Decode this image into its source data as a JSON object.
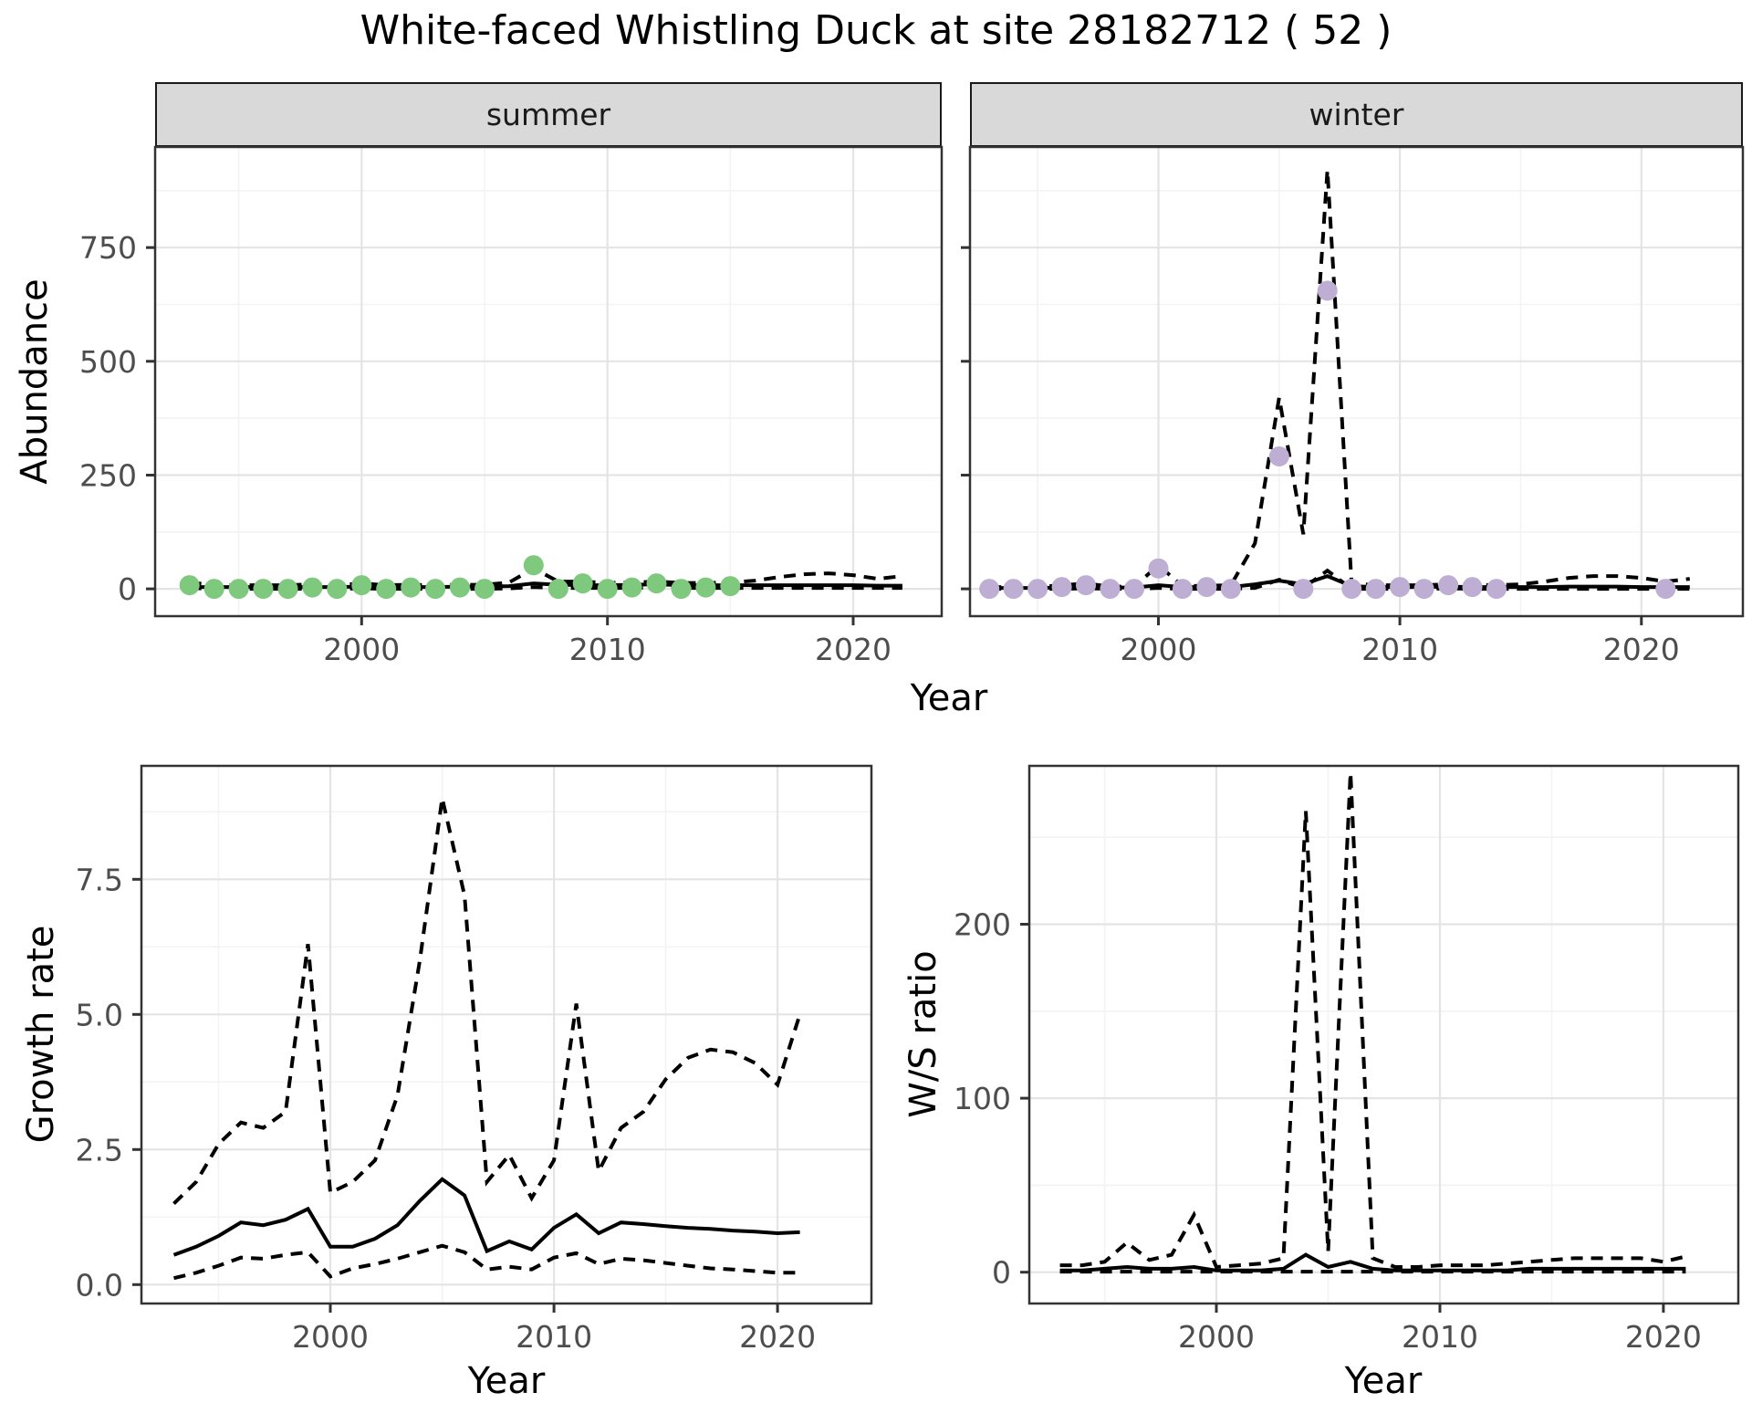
{
  "figure_title": "White-faced Whistling Duck at site 28182712 ( 52 )",
  "facets": [
    {
      "label": "summer"
    },
    {
      "label": "winter"
    }
  ],
  "axis_titles": {
    "x": "Year",
    "abundance": "Abundance",
    "growth": "Growth rate",
    "ws": "W/S ratio"
  },
  "colors": {
    "summer_point": "#7FC97F",
    "winter_point": "#BEAED4",
    "line": "#000000",
    "strip_bg": "#d9d9d9",
    "panel_border": "#333333",
    "grid_major": "#e4e4e4",
    "grid_minor": "#f3f3f3",
    "tick_text": "#4d4d4d",
    "tick_mark": "#333333"
  },
  "chart_data": [
    {
      "id": "abundance-summer",
      "type": "line",
      "facet": "summer",
      "xlabel": "Year",
      "ylabel": "Abundance",
      "xlim": [
        1991.6,
        2023.6
      ],
      "ylim": [
        -60,
        971
      ],
      "x_ticks": {
        "values": [
          2000,
          2010,
          2020
        ],
        "labels": [
          "2000",
          "2010",
          "2020"
        ]
      },
      "x_minor": [
        1995,
        2005,
        2015
      ],
      "y_ticks": {
        "values": [
          0,
          250,
          500,
          750
        ],
        "labels": [
          "0",
          "250",
          "500",
          "750"
        ]
      },
      "y_minor": [
        125,
        375,
        625,
        875
      ],
      "show_y_labels": true,
      "series": [
        {
          "name": "upper_ci",
          "style": "dashed",
          "x": [
            1993,
            1994,
            1995,
            1996,
            1997,
            1998,
            1999,
            2000,
            2001,
            2002,
            2003,
            2004,
            2005,
            2006,
            2007,
            2008,
            2009,
            2010,
            2011,
            2012,
            2013,
            2014,
            2015,
            2016,
            2017,
            2018,
            2019,
            2020,
            2021,
            2022
          ],
          "y": [
            14,
            8,
            8,
            8,
            8,
            10,
            8,
            12,
            8,
            9,
            8,
            9,
            9,
            14,
            45,
            16,
            16,
            13,
            14,
            16,
            13,
            13,
            14,
            18,
            26,
            32,
            34,
            30,
            22,
            28
          ]
        },
        {
          "name": "fit",
          "style": "solid",
          "x": [
            1993,
            1994,
            1995,
            1996,
            1997,
            1998,
            1999,
            2000,
            2001,
            2002,
            2003,
            2004,
            2005,
            2006,
            2007,
            2008,
            2009,
            2010,
            2011,
            2012,
            2013,
            2014,
            2015,
            2016,
            2017,
            2018,
            2019,
            2020,
            2021,
            2022
          ],
          "y": [
            4,
            4,
            4,
            4,
            4,
            4,
            4,
            5,
            4,
            4,
            4,
            5,
            5,
            6,
            12,
            9,
            8,
            8,
            9,
            10,
            8,
            8,
            8,
            8,
            8,
            8,
            8,
            8,
            7,
            7
          ]
        },
        {
          "name": "lower_ci",
          "style": "dashed",
          "x": [
            1993,
            1994,
            1995,
            1996,
            1997,
            1998,
            1999,
            2000,
            2001,
            2002,
            2003,
            2004,
            2005,
            2006,
            2007,
            2008,
            2009,
            2010,
            2011,
            2012,
            2013,
            2014,
            2015,
            2016,
            2017,
            2018,
            2019,
            2020,
            2021,
            2022
          ],
          "y": [
            2,
            0,
            0,
            0,
            0,
            0,
            0,
            1,
            0,
            0,
            0,
            0,
            0,
            1,
            4,
            2,
            2,
            2,
            2,
            3,
            2,
            2,
            2,
            2,
            2,
            2,
            2,
            2,
            2,
            2
          ]
        }
      ],
      "points": {
        "color": "#7FC97F",
        "x": [
          1993,
          1994,
          1995,
          1996,
          1997,
          1998,
          1999,
          2000,
          2001,
          2002,
          2003,
          2004,
          2005,
          2007,
          2008,
          2009,
          2010,
          2011,
          2012,
          2013,
          2014,
          2015
        ],
        "y": [
          8,
          0,
          0,
          0,
          0,
          3,
          0,
          8,
          0,
          3,
          0,
          3,
          0,
          52,
          0,
          12,
          0,
          3,
          12,
          0,
          3,
          6
        ]
      }
    },
    {
      "id": "abundance-winter",
      "type": "line",
      "facet": "winter",
      "xlabel": "Year",
      "ylabel": "Abundance",
      "xlim": [
        1992.2,
        2024.2
      ],
      "ylim": [
        -60,
        971
      ],
      "x_ticks": {
        "values": [
          2000,
          2010,
          2020
        ],
        "labels": [
          "2000",
          "2010",
          "2020"
        ]
      },
      "x_minor": [
        1995,
        2005,
        2015
      ],
      "y_ticks": {
        "values": [
          0,
          250,
          500,
          750
        ],
        "labels": [
          "0",
          "250",
          "500",
          "750"
        ]
      },
      "y_minor": [
        125,
        375,
        625,
        875
      ],
      "show_y_labels": false,
      "series": [
        {
          "name": "upper_ci",
          "style": "dashed",
          "x": [
            1993,
            1994,
            1995,
            1996,
            1997,
            1998,
            1999,
            2000,
            2001,
            2002,
            2003,
            2004,
            2005,
            2006,
            2007,
            2008,
            2009,
            2010,
            2011,
            2012,
            2013,
            2014,
            2015,
            2016,
            2017,
            2018,
            2019,
            2020,
            2021,
            2022
          ],
          "y": [
            4,
            4,
            4,
            8,
            12,
            5,
            5,
            52,
            6,
            7,
            8,
            100,
            420,
            120,
            920,
            12,
            8,
            8,
            8,
            10,
            9,
            8,
            10,
            16,
            24,
            28,
            28,
            24,
            16,
            22
          ]
        },
        {
          "name": "fit",
          "style": "solid",
          "x": [
            1993,
            1994,
            1995,
            1996,
            1997,
            1998,
            1999,
            2000,
            2001,
            2002,
            2003,
            2004,
            2005,
            2006,
            2007,
            2008,
            2009,
            2010,
            2011,
            2012,
            2013,
            2014,
            2015,
            2016,
            2017,
            2018,
            2019,
            2020,
            2021,
            2022
          ],
          "y": [
            2,
            2,
            2,
            3,
            4,
            3,
            3,
            8,
            4,
            4,
            4,
            10,
            18,
            10,
            28,
            6,
            4,
            4,
            4,
            5,
            4,
            4,
            4,
            4,
            5,
            5,
            5,
            4,
            4,
            4
          ]
        },
        {
          "name": "lower_ci",
          "style": "dashed",
          "x": [
            1993,
            1994,
            1995,
            1996,
            1997,
            1998,
            1999,
            2000,
            2001,
            2002,
            2003,
            2004,
            2005,
            2006,
            2007,
            2008,
            2009,
            2010,
            2011,
            2012,
            2013,
            2014,
            2015,
            2016,
            2017,
            2018,
            2019,
            2020,
            2021,
            2022
          ],
          "y": [
            0,
            0,
            0,
            0,
            1,
            0,
            0,
            2,
            0,
            0,
            0,
            2,
            20,
            2,
            40,
            0,
            0,
            0,
            0,
            1,
            0,
            0,
            0,
            0,
            0,
            0,
            0,
            0,
            0,
            0
          ]
        }
      ],
      "points": {
        "color": "#BEAED4",
        "x": [
          1993,
          1994,
          1995,
          1996,
          1997,
          1998,
          1999,
          2000,
          2001,
          2002,
          2003,
          2005,
          2006,
          2007,
          2008,
          2009,
          2010,
          2011,
          2012,
          2013,
          2014,
          2021
        ],
        "y": [
          0,
          0,
          0,
          4,
          8,
          0,
          0,
          45,
          0,
          4,
          0,
          291,
          0,
          655,
          0,
          0,
          4,
          0,
          8,
          4,
          0,
          0
        ]
      }
    },
    {
      "id": "growth-rate",
      "type": "line",
      "xlabel": "Year",
      "ylabel": "Growth rate",
      "xlim": [
        1991.55,
        2024.2
      ],
      "ylim": [
        -0.35,
        9.6
      ],
      "x_ticks": {
        "values": [
          2000,
          2010,
          2020
        ],
        "labels": [
          "2000",
          "2010",
          "2020"
        ]
      },
      "x_minor": [
        1995,
        2005,
        2015
      ],
      "y_ticks": {
        "values": [
          0,
          2.5,
          5,
          7.5
        ],
        "labels": [
          "0.0",
          "2.5",
          "5.0",
          "7.5"
        ]
      },
      "y_minor": [
        1.25,
        3.75,
        6.25,
        8.75
      ],
      "show_y_labels": true,
      "series": [
        {
          "name": "upper_ci",
          "style": "dashed",
          "x": [
            1993,
            1994,
            1995,
            1996,
            1997,
            1998,
            1999,
            2000,
            2001,
            2002,
            2003,
            2004,
            2005,
            2006,
            2007,
            2008,
            2009,
            2010,
            2011,
            2012,
            2013,
            2014,
            2015,
            2016,
            2017,
            2018,
            2019,
            2020,
            2021
          ],
          "y": [
            1.5,
            1.9,
            2.6,
            3.0,
            2.9,
            3.2,
            6.3,
            1.7,
            1.9,
            2.3,
            3.5,
            6.0,
            9.0,
            7.2,
            1.9,
            2.4,
            1.6,
            2.3,
            5.2,
            2.1,
            2.9,
            3.2,
            3.8,
            4.2,
            4.35,
            4.3,
            4.1,
            3.7,
            5.0
          ]
        },
        {
          "name": "fit",
          "style": "solid",
          "x": [
            1993,
            1994,
            1995,
            1996,
            1997,
            1998,
            1999,
            2000,
            2001,
            2002,
            2003,
            2004,
            2005,
            2006,
            2007,
            2008,
            2009,
            2010,
            2011,
            2012,
            2013,
            2014,
            2015,
            2016,
            2017,
            2018,
            2019,
            2020,
            2021
          ],
          "y": [
            0.55,
            0.7,
            0.9,
            1.15,
            1.1,
            1.2,
            1.4,
            0.7,
            0.7,
            0.85,
            1.1,
            1.55,
            1.95,
            1.65,
            0.62,
            0.8,
            0.65,
            1.05,
            1.3,
            0.95,
            1.15,
            1.12,
            1.08,
            1.05,
            1.03,
            1.0,
            0.98,
            0.95,
            0.97
          ]
        },
        {
          "name": "lower_ci",
          "style": "dashed",
          "x": [
            1993,
            1994,
            1995,
            1996,
            1997,
            1998,
            1999,
            2000,
            2001,
            2002,
            2003,
            2004,
            2005,
            2006,
            2007,
            2008,
            2009,
            2010,
            2011,
            2012,
            2013,
            2014,
            2015,
            2016,
            2017,
            2018,
            2019,
            2020,
            2021
          ],
          "y": [
            0.12,
            0.22,
            0.35,
            0.5,
            0.48,
            0.55,
            0.6,
            0.15,
            0.3,
            0.38,
            0.48,
            0.6,
            0.72,
            0.6,
            0.28,
            0.33,
            0.28,
            0.5,
            0.58,
            0.38,
            0.48,
            0.45,
            0.4,
            0.35,
            0.3,
            0.28,
            0.25,
            0.22,
            0.22
          ]
        }
      ],
      "points": null
    },
    {
      "id": "ws-ratio",
      "type": "line",
      "xlabel": "Year",
      "ylabel": "W/S ratio",
      "xlim": [
        1991.63,
        2023.35
      ],
      "ylim": [
        -18,
        291
      ],
      "x_ticks": {
        "values": [
          2000,
          2010,
          2020
        ],
        "labels": [
          "2000",
          "2010",
          "2020"
        ]
      },
      "x_minor": [
        1995,
        2005,
        2015
      ],
      "y_ticks": {
        "values": [
          0,
          100,
          200
        ],
        "labels": [
          "0",
          "100",
          "200"
        ]
      },
      "y_minor": [
        50,
        150,
        250
      ],
      "show_y_labels": true,
      "series": [
        {
          "name": "upper_ci",
          "style": "dashed",
          "x": [
            1993,
            1994,
            1995,
            1996,
            1997,
            1998,
            1999,
            2000,
            2001,
            2002,
            2003,
            2004,
            2005,
            2006,
            2007,
            2008,
            2009,
            2010,
            2011,
            2012,
            2013,
            2014,
            2015,
            2016,
            2017,
            2018,
            2019,
            2020,
            2021
          ],
          "y": [
            4,
            4,
            6,
            17,
            7,
            10,
            33,
            3,
            4,
            5,
            8,
            265,
            12,
            287,
            8,
            3,
            3,
            4,
            4,
            4,
            5,
            6,
            7,
            8,
            8,
            8,
            8,
            6,
            9
          ]
        },
        {
          "name": "fit",
          "style": "solid",
          "x": [
            1993,
            1994,
            1995,
            1996,
            1997,
            1998,
            1999,
            2000,
            2001,
            2002,
            2003,
            2004,
            2005,
            2006,
            2007,
            2008,
            2009,
            2010,
            2011,
            2012,
            2013,
            2014,
            2015,
            2016,
            2017,
            2018,
            2019,
            2020,
            2021
          ],
          "y": [
            1,
            1,
            2,
            3,
            2,
            2,
            3,
            1,
            1,
            1,
            2,
            10,
            3,
            6,
            2,
            1,
            1,
            1,
            1,
            1,
            1,
            2,
            2,
            2,
            2,
            2,
            2,
            2,
            2
          ]
        },
        {
          "name": "lower_ci",
          "style": "dashed",
          "x": [
            1993,
            1994,
            1995,
            1996,
            1997,
            1998,
            1999,
            2000,
            2001,
            2002,
            2003,
            2004,
            2005,
            2006,
            2007,
            2008,
            2009,
            2010,
            2011,
            2012,
            2013,
            2014,
            2015,
            2016,
            2017,
            2018,
            2019,
            2020,
            2021
          ],
          "y": [
            0.3,
            0.3,
            0.3,
            0.3,
            0.3,
            0.3,
            0.3,
            0.3,
            0.3,
            0.3,
            0.3,
            0.3,
            0.3,
            0.3,
            0.3,
            0.3,
            0.3,
            0.3,
            0.3,
            0.3,
            0.3,
            0.3,
            0.3,
            0.3,
            0.3,
            0.3,
            0.3,
            0.3,
            0.3
          ]
        }
      ],
      "points": null
    }
  ]
}
